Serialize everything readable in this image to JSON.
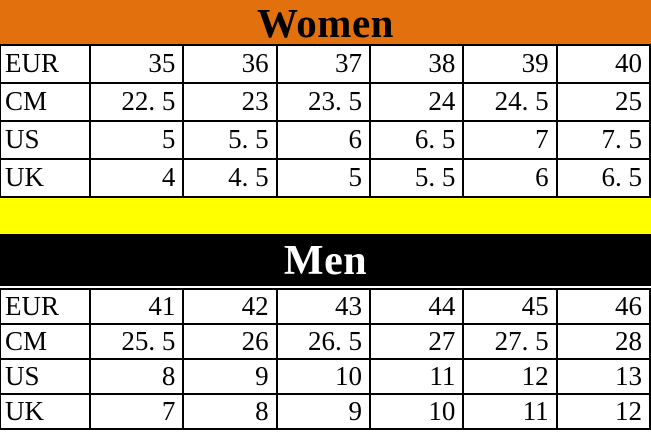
{
  "colors": {
    "women_header_bg": "#e2700c",
    "women_header_text": "#000000",
    "divider_bg": "#ffff00",
    "men_header_bg": "#000000",
    "men_header_text": "#ffffff",
    "table_text": "#000000",
    "grid_lines": "#000000"
  },
  "women": {
    "title": "Women",
    "rows": [
      {
        "label": "EUR",
        "values": [
          "35",
          "36",
          "37",
          "38",
          "39",
          "40"
        ]
      },
      {
        "label": "CM",
        "values": [
          "22. 5",
          "23",
          "23. 5",
          "24",
          "24. 5",
          "25"
        ]
      },
      {
        "label": "US",
        "values": [
          "5",
          "5. 5",
          "6",
          "6. 5",
          "7",
          "7. 5"
        ]
      },
      {
        "label": "UK",
        "values": [
          "4",
          "4. 5",
          "5",
          "5. 5",
          "6",
          "6. 5"
        ]
      }
    ]
  },
  "men": {
    "title": "Men",
    "rows": [
      {
        "label": "EUR",
        "values": [
          "41",
          "42",
          "43",
          "44",
          "45",
          "46"
        ]
      },
      {
        "label": "CM",
        "values": [
          "25. 5",
          "26",
          "26. 5",
          "27",
          "27. 5",
          "28"
        ]
      },
      {
        "label": "US",
        "values": [
          "8",
          "9",
          "10",
          "11",
          "12",
          "13"
        ]
      },
      {
        "label": "UK",
        "values": [
          "7",
          "8",
          "9",
          "10",
          "11",
          "12"
        ]
      }
    ]
  },
  "chart_data": [
    {
      "type": "table",
      "title": "Women",
      "row_headers": [
        "EUR",
        "CM",
        "US",
        "UK"
      ],
      "rows": [
        [
          35,
          36,
          37,
          38,
          39,
          40
        ],
        [
          22.5,
          23,
          23.5,
          24,
          24.5,
          25
        ],
        [
          5,
          5.5,
          6,
          6.5,
          7,
          7.5
        ],
        [
          4,
          4.5,
          5,
          5.5,
          6,
          6.5
        ]
      ]
    },
    {
      "type": "table",
      "title": "Men",
      "row_headers": [
        "EUR",
        "CM",
        "US",
        "UK"
      ],
      "rows": [
        [
          41,
          42,
          43,
          44,
          45,
          46
        ],
        [
          25.5,
          26,
          26.5,
          27,
          27.5,
          28
        ],
        [
          8,
          9,
          10,
          11,
          12,
          13
        ],
        [
          7,
          8,
          9,
          10,
          11,
          12
        ]
      ]
    }
  ]
}
